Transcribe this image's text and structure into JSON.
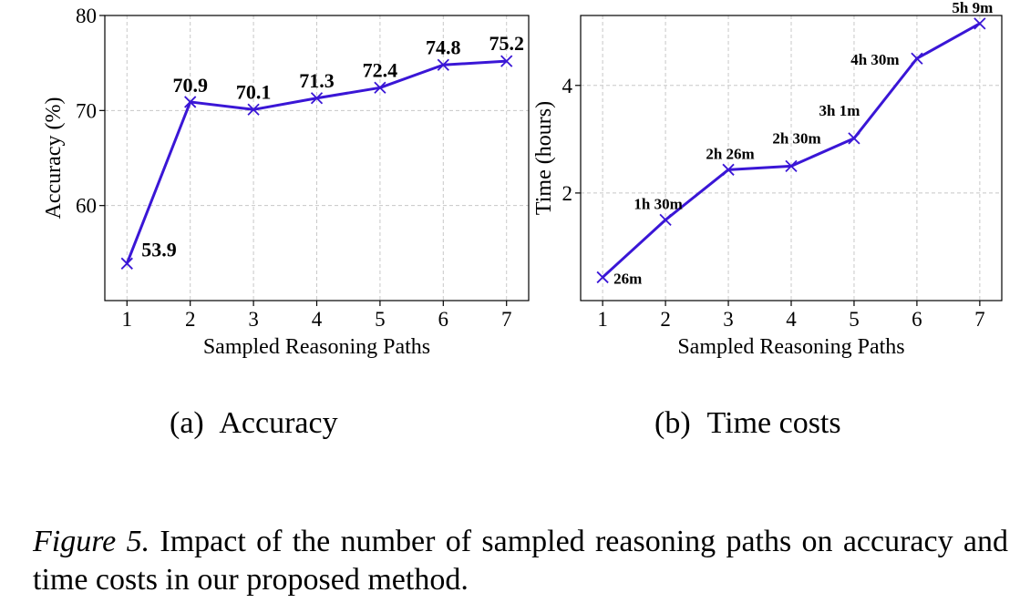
{
  "chart_data": [
    {
      "type": "line",
      "title": "",
      "xlabel": "Sampled Reasoning Paths",
      "ylabel": "Accuracy (%)",
      "x": [
        1,
        2,
        3,
        4,
        5,
        6,
        7
      ],
      "ylim": [
        50,
        80
      ],
      "xticks": [
        "1",
        "2",
        "3",
        "4",
        "5",
        "6",
        "7"
      ],
      "yticks": [
        "60",
        "70",
        "80"
      ],
      "grid": true,
      "series": [
        {
          "values": [
            53.9,
            70.9,
            70.1,
            71.3,
            72.4,
            74.8,
            75.2
          ],
          "labels": [
            "53.9",
            "70.9",
            "70.1",
            "71.3",
            "72.4",
            "74.8",
            "75.2"
          ],
          "color": "#3a16d6",
          "marker": "x"
        }
      ]
    },
    {
      "type": "line",
      "title": "",
      "xlabel": "Sampled Reasoning Paths",
      "ylabel": "Time (hours)",
      "x": [
        1,
        2,
        3,
        4,
        5,
        6,
        7
      ],
      "ylim": [
        0,
        5.3
      ],
      "xticks": [
        "1",
        "2",
        "3",
        "4",
        "5",
        "6",
        "7"
      ],
      "yticks": [
        "2",
        "4"
      ],
      "grid": true,
      "series": [
        {
          "values": [
            0.433,
            1.5,
            2.433,
            2.5,
            3.017,
            4.5,
            5.15
          ],
          "labels": [
            "26m",
            "1h 30m",
            "2h 26m",
            "2h 30m",
            "3h 1m",
            "4h 30m",
            "5h 9m"
          ],
          "color": "#3a16d6",
          "marker": "x"
        }
      ]
    }
  ],
  "subcaptions": [
    {
      "letter": "(a)",
      "text": "Accuracy"
    },
    {
      "letter": "(b)",
      "text": "Time costs"
    }
  ],
  "caption": {
    "prefix": "Figure 5.",
    "text": "Impact of the number of sampled reasoning paths on accuracy and time costs in our proposed method."
  }
}
